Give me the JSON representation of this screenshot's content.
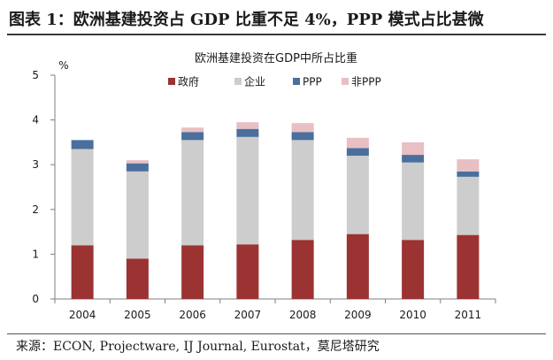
{
  "figure": {
    "heading": "图表 1：欧洲基建投资占 GDP 比重不足 4%，PPP 模式占比甚微",
    "source": "来源：ECON, Projectware, IJ Journal, Eurostat，莫尼塔研究"
  },
  "chart_data": {
    "type": "bar",
    "stacked": true,
    "title": "欧洲基建投资在GDP中所占比重",
    "yunit": "%",
    "ylim": [
      0,
      5
    ],
    "yticks": [
      "0",
      "1",
      "2",
      "3",
      "4",
      "5"
    ],
    "categories": [
      "2004",
      "2005",
      "2006",
      "2007",
      "2008",
      "2009",
      "2010",
      "2011"
    ],
    "series": [
      {
        "name": "政府",
        "color": "#9b3333",
        "values": [
          1.2,
          0.9,
          1.2,
          1.22,
          1.32,
          1.45,
          1.32,
          1.43
        ]
      },
      {
        "name": "企业",
        "color": "#cdcdcd",
        "values": [
          2.15,
          1.95,
          2.35,
          2.4,
          2.23,
          1.75,
          1.73,
          1.3
        ]
      },
      {
        "name": "PPP",
        "color": "#4a6f9c",
        "values": [
          0.2,
          0.18,
          0.18,
          0.18,
          0.18,
          0.17,
          0.17,
          0.12
        ]
      },
      {
        "name": "非PPP",
        "color": "#e8bfc3",
        "values": [
          0.0,
          0.07,
          0.1,
          0.15,
          0.2,
          0.23,
          0.28,
          0.27
        ]
      }
    ],
    "legend_position": "top",
    "grid": false
  }
}
